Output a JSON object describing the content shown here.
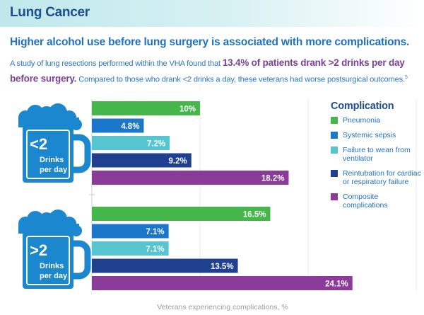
{
  "header": {
    "title": "Lung Cancer"
  },
  "headline": "Higher alcohol use before lung surgery is associated with more complications.",
  "intro": {
    "part1": "A study of lung resections performed within the VHA found that ",
    "highlight": "13.4% of patients drank >2 drinks per day before surgery.",
    "part2": " Compared to those who drank <2 drinks a day, these veterans had worse postsurgical outcomes.",
    "ref": "5"
  },
  "colors": {
    "pneumonia": "#45b649",
    "systemic_sepsis": "#1a77c9",
    "failure_to_wean": "#56c5d0",
    "reintubation": "#1f3f8f",
    "composite": "#8a3c98",
    "mug": "#1b87cf"
  },
  "mugs": [
    {
      "value": "<2",
      "unit1": "Drinks",
      "unit2": "per day",
      "icon": "beer-mug-icon"
    },
    {
      "value": ">2",
      "unit1": "Drinks",
      "unit2": "per day",
      "icon": "beer-mug-icon"
    }
  ],
  "legend": {
    "title": "Complication",
    "items": [
      {
        "key": "pneumonia",
        "label": "Pneumonia"
      },
      {
        "key": "systemic_sepsis",
        "label": "Systemic sepsis"
      },
      {
        "key": "failure_to_wean",
        "label": "Failure to wean from ventilator"
      },
      {
        "key": "reintubation",
        "label": "Reintubation for cardiac or respiratory failure"
      },
      {
        "key": "composite",
        "label": "Composite complications"
      }
    ]
  },
  "chart_data": {
    "type": "bar",
    "orientation": "horizontal",
    "title": "",
    "xlabel": "Veterans experiencing complications, %",
    "ylabel": "",
    "xlim": [
      0,
      32
    ],
    "grid": true,
    "legend_position": "right",
    "categories": [
      "Pneumonia",
      "Systemic sepsis",
      "Failure to wean from ventilator",
      "Reintubation for cardiac or respiratory failure",
      "Composite complications"
    ],
    "groups": [
      {
        "name": "<2 Drinks per day",
        "values": [
          10,
          4.8,
          7.2,
          9.2,
          18.2
        ],
        "labels": [
          "10%",
          "4.8%",
          "7.2%",
          "9.2%",
          "18.2%"
        ]
      },
      {
        "name": ">2 Drinks per day",
        "values": [
          16.5,
          7.1,
          7.1,
          13.5,
          24.1
        ],
        "labels": [
          "16.5%",
          "7.1%",
          "7.1%",
          "13.5%",
          "24.1%"
        ]
      }
    ]
  }
}
